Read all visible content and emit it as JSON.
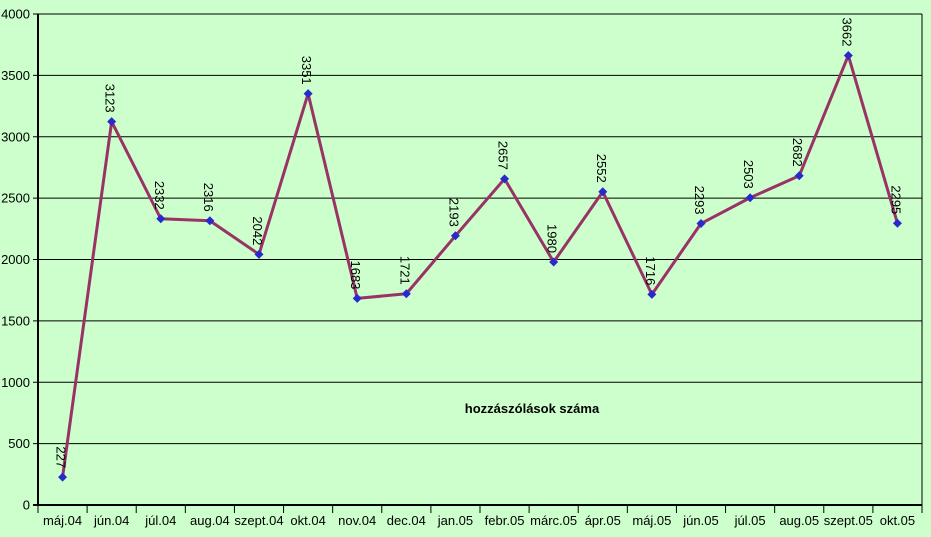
{
  "chart_data": {
    "type": "line",
    "title": "",
    "annotation": "hozzászólások száma",
    "categories": [
      "máj.04",
      "jún.04",
      "júl.04",
      "aug.04",
      "szept.04",
      "okt.04",
      "nov.04",
      "dec.04",
      "jan.05",
      "febr.05",
      "márc.05",
      "ápr.05",
      "máj.05",
      "jún.05",
      "júl.05",
      "aug.05",
      "szept.05",
      "okt.05"
    ],
    "values": [
      227,
      3123,
      2332,
      2316,
      2042,
      3351,
      1683,
      1721,
      2193,
      2657,
      1980,
      2552,
      1716,
      2293,
      2503,
      2682,
      3662,
      2295
    ],
    "data_labels": [
      "227",
      "3123",
      "2332",
      "2316",
      "2042",
      "3351",
      "1683",
      "1721",
      "2193",
      "2657",
      "1980",
      "2552",
      "1716",
      "2293",
      "2503",
      "2682",
      "3662",
      "2295"
    ],
    "xlabel": "",
    "ylabel": "",
    "ylim": [
      0,
      4000
    ],
    "ytick_step": 500,
    "yticks": [
      "0",
      "500",
      "1000",
      "1500",
      "2000",
      "2500",
      "3000",
      "3500",
      "4000"
    ],
    "grid": true,
    "legend": "none",
    "marker_shape": "diamond",
    "colors": {
      "background": "#CCFFCC",
      "line": "#993366",
      "marker": "#2A2ACC",
      "grid": "#000000",
      "axis": "#000000",
      "text": "#000000"
    }
  }
}
